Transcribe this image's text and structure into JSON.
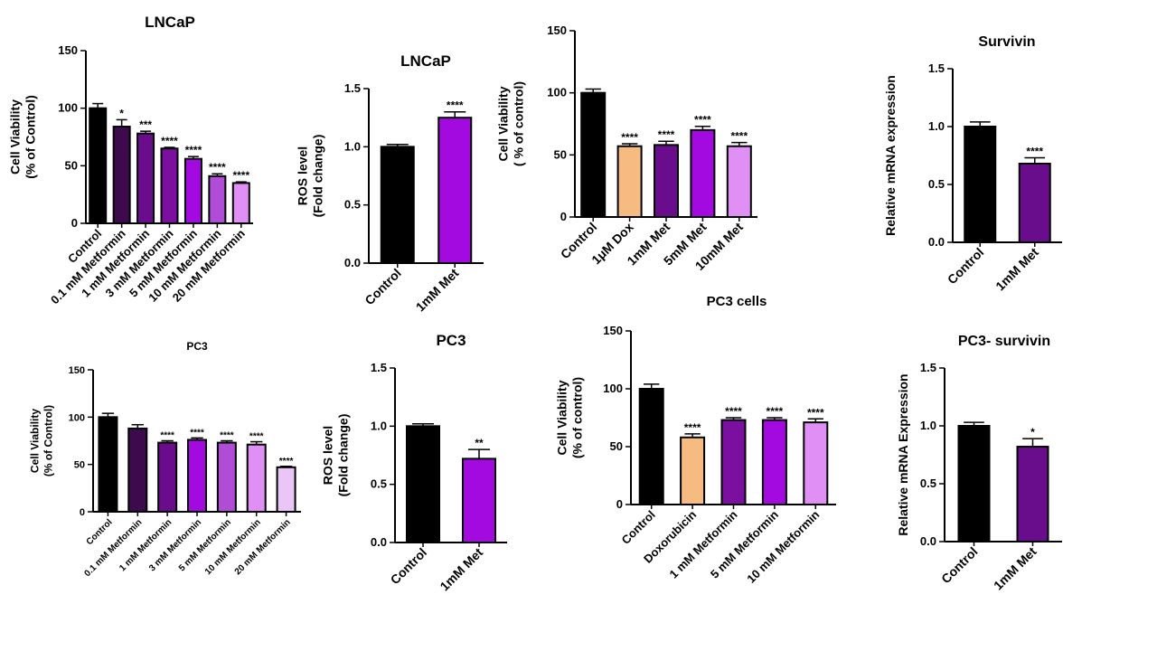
{
  "colors": {
    "black": "#000000",
    "dark_purple": "#3d0a4e",
    "purple": "#6a0d8c",
    "violet": "#7a0fa0",
    "bright_purple": "#a20ae0",
    "orchid": "#b04cd6",
    "light_orchid": "#e090f5",
    "lavender": "#e9c6f5",
    "peach": "#f6bb80"
  },
  "chart_data": [
    {
      "type": "bar",
      "title": "LNCaP",
      "ylabel": [
        "Cell  Viability",
        "(% of Control)"
      ],
      "categories": [
        "Control",
        "0.1 mM Metformin",
        "1 mM Metformin",
        "3 mM Metformin",
        "5 mM Metformin",
        "10 mM Metformin",
        "20 mM Metformin"
      ],
      "values": [
        100,
        84,
        78,
        65,
        56,
        41,
        35
      ],
      "errors": [
        4,
        6,
        2,
        1,
        2,
        2,
        1
      ],
      "significance": [
        "",
        "*",
        "***",
        "****",
        "****",
        "****",
        "****"
      ],
      "colors": [
        "#000000",
        "#3d0a4e",
        "#6a0d8c",
        "#7a0fa0",
        "#a20ae0",
        "#b04cd6",
        "#e090f5"
      ],
      "ylim": [
        0,
        150
      ],
      "yticks": [
        0,
        50,
        100,
        150
      ]
    },
    {
      "type": "bar",
      "title": "LNCaP",
      "ylabel": [
        "ROS level",
        "(Fold change)"
      ],
      "categories": [
        "Control",
        "1mM Met"
      ],
      "values": [
        1.0,
        1.25
      ],
      "errors": [
        0.02,
        0.05
      ],
      "significance": [
        "",
        "****"
      ],
      "colors": [
        "#000000",
        "#a20ae0"
      ],
      "ylim": [
        0,
        1.5
      ],
      "yticks": [
        "0.0",
        "0.5",
        "1.0",
        "1.5"
      ]
    },
    {
      "type": "bar",
      "title": "",
      "ylabel": [
        "Cell Viability",
        "( % of control)"
      ],
      "categories": [
        "Control",
        "1μM Dox",
        "1mM Met",
        "5mM Met",
        "10mM Met"
      ],
      "values": [
        100,
        57,
        58,
        70,
        57
      ],
      "errors": [
        3,
        2,
        3,
        3,
        3
      ],
      "significance": [
        "",
        "****",
        "****",
        "****",
        "****"
      ],
      "colors": [
        "#000000",
        "#f6bb80",
        "#6a0d8c",
        "#a20ae0",
        "#e090f5"
      ],
      "ylim": [
        0,
        150
      ],
      "yticks": [
        0,
        50,
        100,
        150
      ]
    },
    {
      "type": "bar",
      "title": "Survivin",
      "ylabel": [
        "Relative mRNA expression"
      ],
      "categories": [
        "Control",
        "1mM Met"
      ],
      "values": [
        1.0,
        0.68
      ],
      "errors": [
        0.04,
        0.05
      ],
      "significance": [
        "",
        "****"
      ],
      "colors": [
        "#000000",
        "#6a0d8c"
      ],
      "ylim": [
        0,
        1.5
      ],
      "yticks": [
        "0.0",
        "0.5",
        "1.0",
        "1.5"
      ]
    },
    {
      "type": "bar",
      "title": "PC3",
      "ylabel": [
        "Cell  Viability",
        "(% of Control)"
      ],
      "categories": [
        "Control",
        "0.1 mM Metformin",
        "1 mM Metformin",
        "3 mM Metformin",
        "5 mM Metformin",
        "10 mM Metformin",
        "20 mM Metformin"
      ],
      "values": [
        100,
        88,
        73,
        76,
        73,
        71,
        47
      ],
      "errors": [
        4,
        4,
        2,
        2,
        2,
        3,
        1
      ],
      "significance": [
        "",
        "",
        "****",
        "****",
        "****",
        "****",
        "****"
      ],
      "colors": [
        "#000000",
        "#3d0a4e",
        "#6a0d8c",
        "#a20ae0",
        "#b04cd6",
        "#e090f5",
        "#e9c6f5"
      ],
      "ylim": [
        0,
        150
      ],
      "yticks": [
        0,
        50,
        100,
        150
      ]
    },
    {
      "type": "bar",
      "title": "PC3",
      "ylabel": [
        "ROS level",
        "(Fold change)"
      ],
      "categories": [
        "Control",
        "1mM Met"
      ],
      "values": [
        1.0,
        0.72
      ],
      "errors": [
        0.02,
        0.08
      ],
      "significance": [
        "",
        "**"
      ],
      "colors": [
        "#000000",
        "#a20ae0"
      ],
      "ylim": [
        0,
        1.5
      ],
      "yticks": [
        "0.0",
        "0.5",
        "1.0",
        "1.5"
      ]
    },
    {
      "type": "bar",
      "title": "PC3 cells",
      "ylabel": [
        "Cell Viability",
        "(% of control)"
      ],
      "categories": [
        "Control",
        "Doxorubicin",
        "1 mM Metformin",
        "5 mM Metformin",
        "10 mM Metformin"
      ],
      "values": [
        100,
        58,
        73,
        73,
        71
      ],
      "errors": [
        4,
        3,
        2,
        2,
        3
      ],
      "significance": [
        "",
        "****",
        "****",
        "****",
        "****"
      ],
      "colors": [
        "#000000",
        "#f6bb80",
        "#7a0fa0",
        "#a20ae0",
        "#e090f5"
      ],
      "ylim": [
        0,
        150
      ],
      "yticks": [
        0,
        50,
        100,
        150
      ]
    },
    {
      "type": "bar",
      "title": "PC3- survivin",
      "ylabel": [
        "Relative mRNA Expression"
      ],
      "categories": [
        "Control",
        "1mM Met"
      ],
      "values": [
        1.0,
        0.82
      ],
      "errors": [
        0.03,
        0.07
      ],
      "significance": [
        "",
        "*"
      ],
      "colors": [
        "#000000",
        "#6a0d8c"
      ],
      "ylim": [
        0,
        1.5
      ],
      "yticks": [
        "0.0",
        "0.5",
        "1.0",
        "1.5"
      ]
    }
  ]
}
